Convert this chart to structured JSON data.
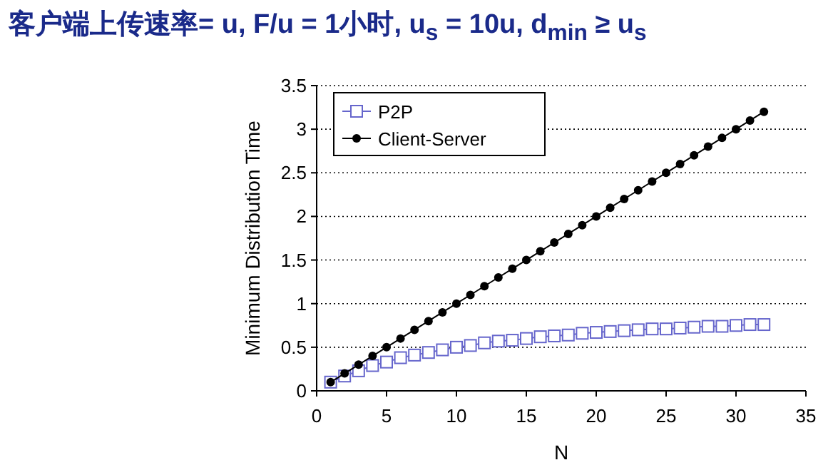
{
  "chart_data": {
    "type": "line",
    "title": "客户端上传速率= u,  F/u = 1小时,  u$_{s}$ = 10u,  d$_{min}$ ≥ u$_{s}$",
    "xlabel": "N",
    "ylabel": "Minimum Distribution Time",
    "xlim": [
      0,
      35
    ],
    "xticks": [
      0,
      5,
      10,
      15,
      20,
      25,
      30,
      35
    ],
    "ylim": [
      0,
      3.5
    ],
    "yticks": [
      0,
      0.5,
      1,
      1.5,
      2,
      2.5,
      3,
      3.5
    ],
    "grid": "y",
    "legend": "top left",
    "series": [
      {
        "name": "P2P",
        "color": "#6666cc",
        "marker": "square",
        "x": [
          1,
          2,
          3,
          4,
          5,
          6,
          7,
          8,
          9,
          10,
          11,
          12,
          13,
          14,
          15,
          16,
          17,
          18,
          19,
          20,
          21,
          22,
          23,
          24,
          25,
          26,
          27,
          28,
          29,
          30,
          31,
          32
        ],
        "values": [
          0.1,
          0.17,
          0.23,
          0.29,
          0.33,
          0.38,
          0.41,
          0.44,
          0.47,
          0.5,
          0.52,
          0.55,
          0.57,
          0.58,
          0.6,
          0.62,
          0.63,
          0.64,
          0.66,
          0.67,
          0.68,
          0.69,
          0.7,
          0.71,
          0.71,
          0.72,
          0.73,
          0.74,
          0.74,
          0.75,
          0.76,
          0.76
        ]
      },
      {
        "name": "Client-Server",
        "color": "#000000",
        "marker": "circle",
        "x": [
          1,
          2,
          3,
          4,
          5,
          6,
          7,
          8,
          9,
          10,
          11,
          12,
          13,
          14,
          15,
          16,
          17,
          18,
          19,
          20,
          21,
          22,
          23,
          24,
          25,
          26,
          27,
          28,
          29,
          30,
          31,
          32
        ],
        "values": [
          0.1,
          0.2,
          0.3,
          0.4,
          0.5,
          0.6,
          0.7,
          0.8,
          0.9,
          1.0,
          1.1,
          1.2,
          1.3,
          1.4,
          1.5,
          1.6,
          1.7,
          1.8,
          1.9,
          2.0,
          2.1,
          2.2,
          2.3,
          2.4,
          2.5,
          2.6,
          2.7,
          2.8,
          2.9,
          3.0,
          3.1,
          3.2
        ]
      }
    ]
  }
}
